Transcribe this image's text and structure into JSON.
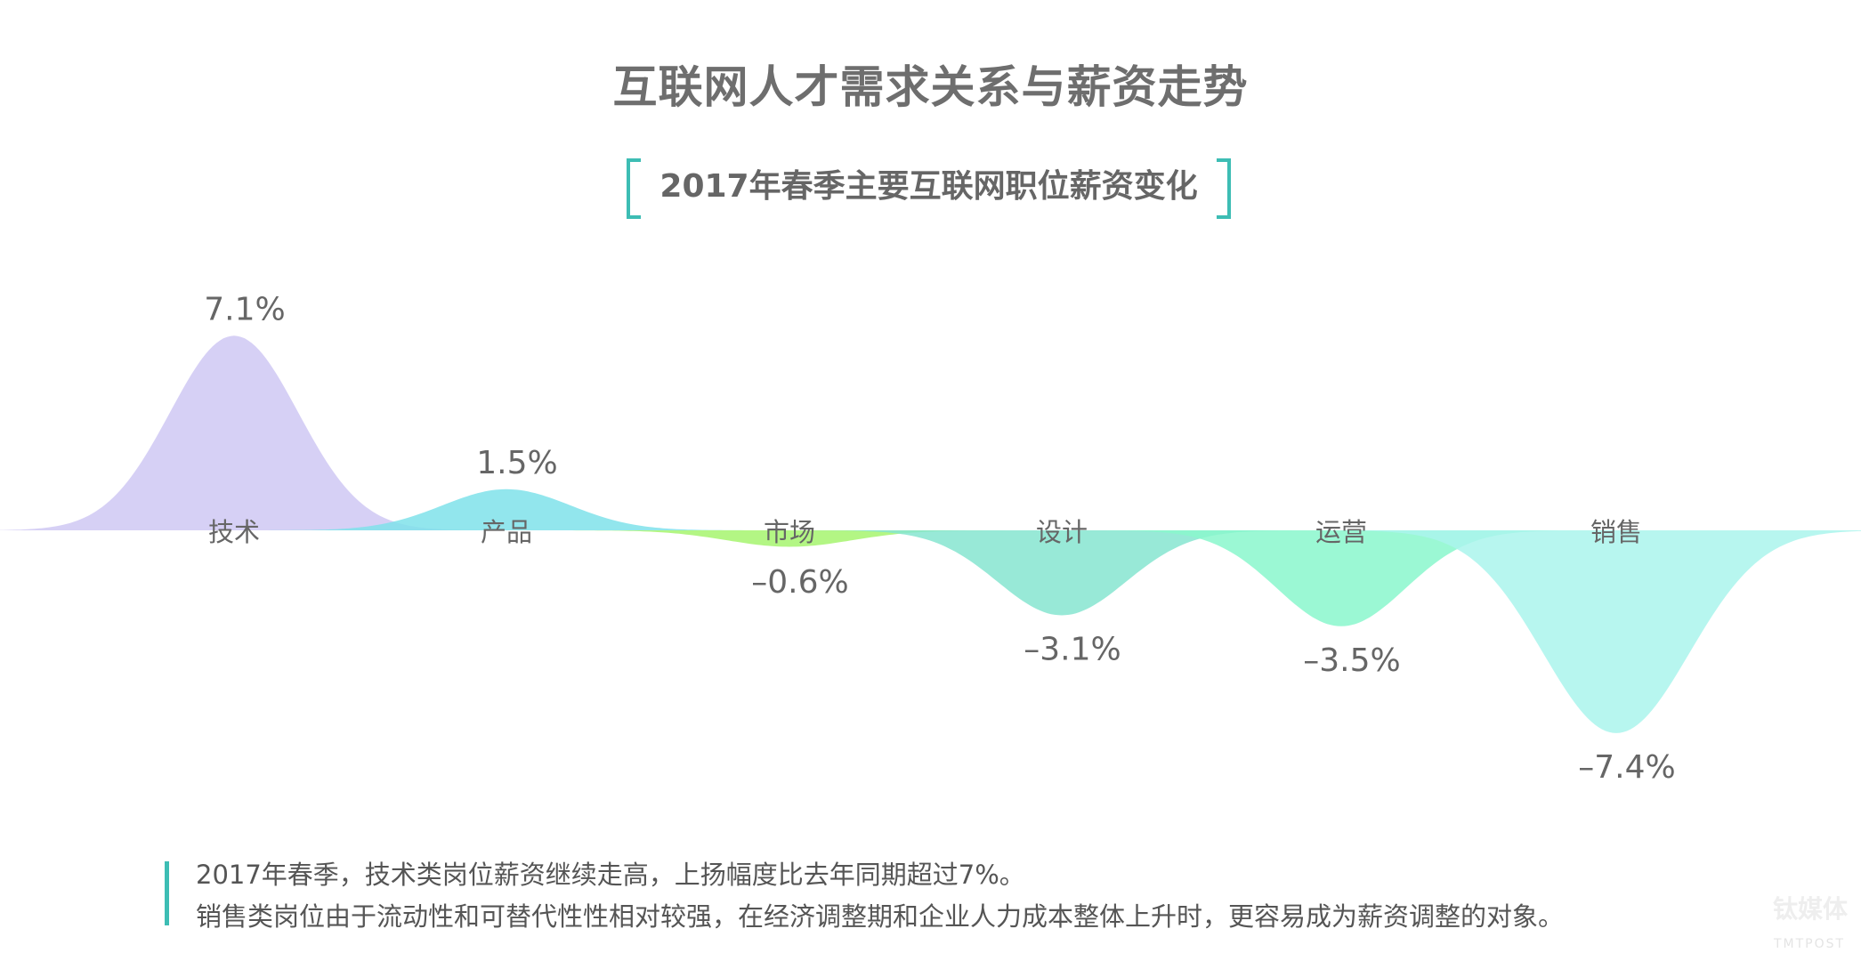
{
  "title": "互联网人才需求关系与薪资走势",
  "chart_data": {
    "type": "area",
    "title": "2017年春季主要互联网职位薪资变化",
    "categories": [
      "技术",
      "产品",
      "市场",
      "设计",
      "运营",
      "销售"
    ],
    "values": [
      7.1,
      1.5,
      -0.6,
      -3.1,
      -3.5,
      -7.4
    ],
    "value_labels": [
      "7.1%",
      "1.5%",
      "–0.6%",
      "–3.1%",
      "–3.5%",
      "–7.4%"
    ],
    "colors": [
      "#cfc8f3",
      "#7fe2ea",
      "#a6f56f",
      "#86e5d0",
      "#8af7cc",
      "#aaf5ec"
    ],
    "unit": "%",
    "grid": false,
    "legend": "none"
  },
  "footer": {
    "lines": [
      "2017年春季，技术类岗位薪资继续走高，上扬幅度比去年同期超过7%。",
      "销售类岗位由于流动性和可替代性性相对较强，在经济调整期和企业人力成本整体上升时，更容易成为薪资调整的对象。"
    ]
  },
  "watermark": {
    "cn": "钛媒体",
    "en": "TMTPOST"
  }
}
